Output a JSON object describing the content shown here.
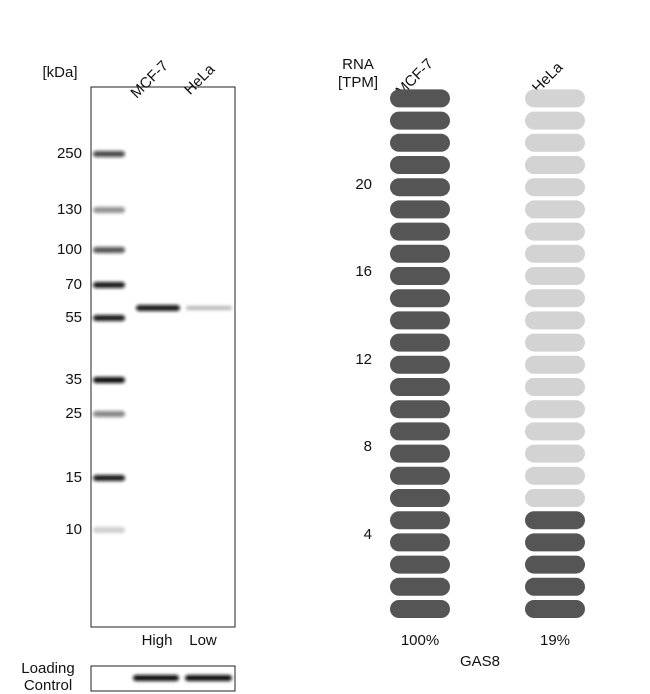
{
  "blot": {
    "unit_label": "[kDa]",
    "lanes": [
      "MCF-7",
      "HeLa"
    ],
    "markers": [
      "250",
      "130",
      "100",
      "70",
      "55",
      "35",
      "25",
      "15",
      "10"
    ],
    "lane_levels": [
      "High",
      "Low"
    ],
    "loading_control": [
      "Loading",
      "Control"
    ]
  },
  "rna": {
    "axis_label": [
      "RNA",
      "[TPM]"
    ],
    "ticks": [
      "20",
      "16",
      "12",
      "8",
      "4"
    ],
    "columns": [
      {
        "label": "MCF-7",
        "percent": "100%"
      },
      {
        "label": "HeLa",
        "percent": "19%"
      }
    ],
    "gene": "GAS8"
  }
}
